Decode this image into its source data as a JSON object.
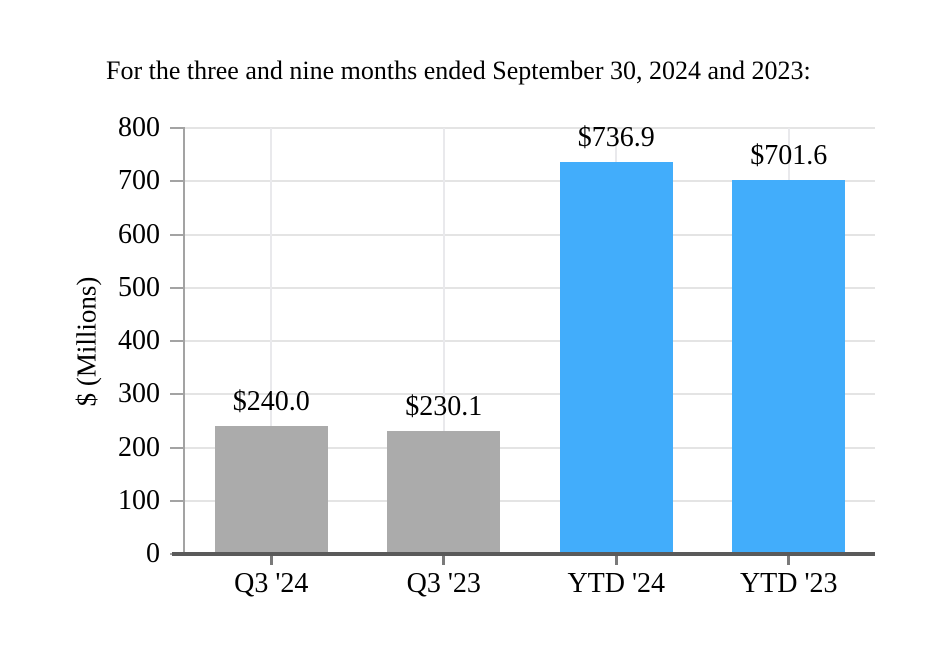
{
  "chart_data": {
    "type": "bar",
    "title": "For the three and nine months ended September 30, 2024 and 2023:",
    "categories": [
      "Q3 '24",
      "Q3 '23",
      "YTD '24",
      "YTD '23"
    ],
    "values": [
      240.0,
      230.1,
      736.9,
      701.6
    ],
    "bar_labels": [
      "$240.0",
      "$230.1",
      "$736.9",
      "$701.6"
    ],
    "xlabel": "",
    "ylabel": "$ (Millions)",
    "ylim": [
      0,
      800
    ],
    "yticks": [
      0,
      100,
      200,
      300,
      400,
      500,
      600,
      700,
      800
    ],
    "grid": {
      "horizontal": true,
      "vertical_at_category_centers": true
    },
    "legend_position": "none",
    "colors": {
      "bar_colors": [
        "#ABABAB",
        "#ABABAB",
        "#42ADFB",
        "#42ADFB"
      ],
      "quarter_bar": "#ABABAB",
      "ytd_bar": "#42ADFB",
      "x_axis_line": "#5A5A5A",
      "y_axis_line": "#A3A3A3",
      "horizontal_gridline": "#E4E4E4",
      "vertical_gridline": "#E9E9EC",
      "text": "#000000"
    }
  }
}
